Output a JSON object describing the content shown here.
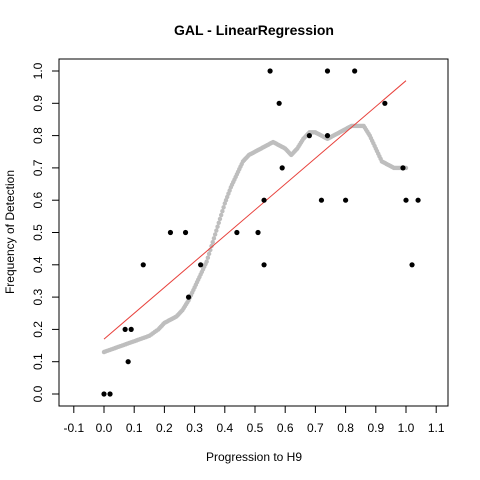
{
  "chart_data": {
    "type": "scatter",
    "title": "GAL - LinearRegression",
    "xlabel": "Progression to H9",
    "ylabel": "Frequency of Detection",
    "xlim": [
      -0.1,
      1.1
    ],
    "ylim": [
      0.0,
      1.0
    ],
    "x_ticks": [
      -0.1,
      0.0,
      0.1,
      0.2,
      0.3,
      0.4,
      0.5,
      0.6,
      0.7,
      0.8,
      0.9,
      1.0,
      1.1
    ],
    "x_tick_labels": [
      "-0.1",
      "0.0",
      "0.1",
      "0.2",
      "0.3",
      "0.4",
      "0.5",
      "0.6",
      "0.7",
      "0.8",
      "0.9",
      "1.0",
      "1.1"
    ],
    "y_ticks": [
      0.0,
      0.1,
      0.2,
      0.3,
      0.4,
      0.5,
      0.6,
      0.7,
      0.8,
      0.9,
      1.0
    ],
    "y_tick_labels": [
      "0.0",
      "0.1",
      "0.2",
      "0.3",
      "0.4",
      "0.5",
      "0.6",
      "0.7",
      "0.8",
      "0.9",
      "1.0"
    ],
    "grid": false,
    "colors": {
      "points": "#000000",
      "smooth": "#bebebe",
      "fit": "#e8413c"
    },
    "series": [
      {
        "kind": "points",
        "x": [
          0.0,
          0.02,
          0.07,
          0.08,
          0.09,
          0.13,
          0.22,
          0.27,
          0.28,
          0.32,
          0.44,
          0.51,
          0.53,
          0.53,
          0.55,
          0.58,
          0.59,
          0.68,
          0.72,
          0.74,
          0.74,
          0.8,
          0.83,
          0.93,
          0.99,
          1.0,
          1.02,
          1.04
        ],
        "y": [
          0.0,
          0.0,
          0.2,
          0.1,
          0.2,
          0.4,
          0.5,
          0.5,
          0.3,
          0.4,
          0.5,
          0.5,
          0.6,
          0.4,
          1.0,
          0.9,
          0.7,
          0.8,
          0.6,
          0.8,
          1.0,
          0.6,
          1.0,
          0.9,
          0.7,
          0.6,
          0.4,
          0.6
        ]
      },
      {
        "kind": "smooth",
        "x": [
          0.0,
          0.03,
          0.06,
          0.09,
          0.12,
          0.15,
          0.18,
          0.2,
          0.22,
          0.24,
          0.26,
          0.28,
          0.3,
          0.32,
          0.34,
          0.36,
          0.38,
          0.4,
          0.42,
          0.44,
          0.46,
          0.48,
          0.5,
          0.52,
          0.54,
          0.56,
          0.58,
          0.6,
          0.62,
          0.64,
          0.66,
          0.68,
          0.7,
          0.72,
          0.74,
          0.76,
          0.78,
          0.8,
          0.82,
          0.84,
          0.86,
          0.88,
          0.9,
          0.92,
          0.94,
          0.96,
          0.98,
          1.0
        ],
        "y": [
          0.13,
          0.14,
          0.15,
          0.16,
          0.17,
          0.18,
          0.2,
          0.22,
          0.23,
          0.24,
          0.26,
          0.29,
          0.33,
          0.37,
          0.41,
          0.47,
          0.53,
          0.59,
          0.64,
          0.68,
          0.72,
          0.74,
          0.75,
          0.76,
          0.77,
          0.78,
          0.77,
          0.76,
          0.74,
          0.76,
          0.79,
          0.81,
          0.81,
          0.8,
          0.79,
          0.8,
          0.81,
          0.82,
          0.83,
          0.83,
          0.83,
          0.8,
          0.76,
          0.72,
          0.71,
          0.7,
          0.7,
          0.7
        ]
      },
      {
        "kind": "fit",
        "x": [
          0.0,
          1.0
        ],
        "y": [
          0.17,
          0.97
        ]
      }
    ]
  }
}
